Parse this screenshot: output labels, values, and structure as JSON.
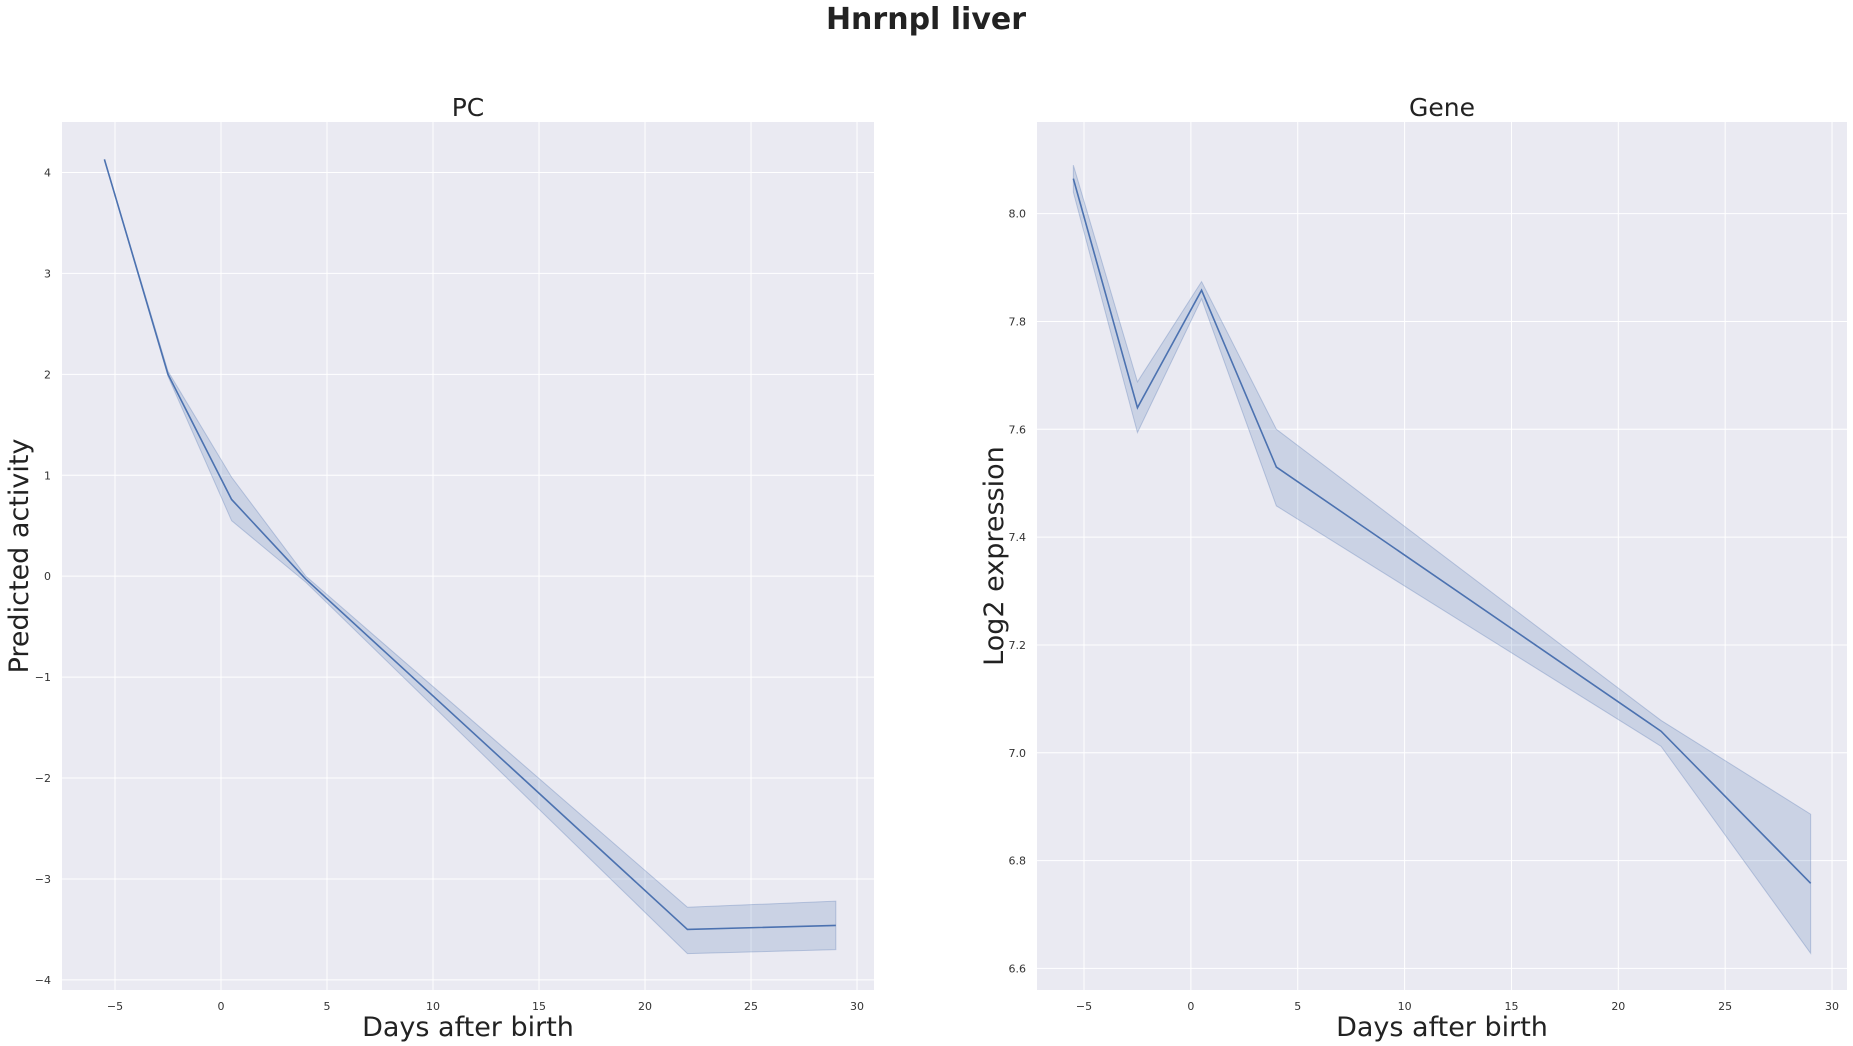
{
  "figure": {
    "suptitle": "Hnrnpl liver"
  },
  "chart_data": [
    {
      "type": "line",
      "title": "PC",
      "xlabel": "Days after birth",
      "ylabel": "Predicted activity",
      "xlim": [
        -7.5,
        30.8
      ],
      "ylim": [
        -4.1,
        4.5
      ],
      "xticks": [
        -5,
        0,
        5,
        10,
        15,
        20,
        25,
        30
      ],
      "yticks": [
        -4,
        -3,
        -2,
        -1,
        0,
        1,
        2,
        3,
        4
      ],
      "grid": true,
      "series": [
        {
          "name": "PC",
          "color": "#4c72b0",
          "x": [
            -5.5,
            -2.5,
            0.5,
            4,
            22,
            29
          ],
          "y": [
            4.13,
            2.0,
            0.76,
            -0.03,
            -3.5,
            -3.46
          ],
          "ci_low": [
            4.13,
            1.98,
            0.55,
            -0.06,
            -3.74,
            -3.7
          ],
          "ci_high": [
            4.13,
            2.03,
            0.98,
            0.0,
            -3.28,
            -3.22
          ]
        }
      ]
    },
    {
      "type": "line",
      "title": "Gene",
      "xlabel": "Days after birth",
      "ylabel": "Log2 expression",
      "xlim": [
        -7.2,
        30.7
      ],
      "ylim": [
        6.56,
        8.17
      ],
      "xticks": [
        -5,
        0,
        5,
        10,
        15,
        20,
        25,
        30
      ],
      "yticks": [
        6.6,
        6.8,
        7.0,
        7.2,
        7.4,
        7.6,
        7.8,
        8.0
      ],
      "grid": true,
      "series": [
        {
          "name": "Gene",
          "color": "#4c72b0",
          "x": [
            -5.5,
            -2.5,
            0.5,
            4,
            22,
            29
          ],
          "y": [
            8.065,
            7.64,
            7.858,
            7.53,
            7.04,
            6.758
          ],
          "ci_low": [
            8.04,
            7.594,
            7.842,
            7.458,
            7.012,
            6.628
          ],
          "ci_high": [
            8.09,
            7.688,
            7.874,
            7.6,
            7.06,
            6.886
          ]
        }
      ]
    }
  ]
}
